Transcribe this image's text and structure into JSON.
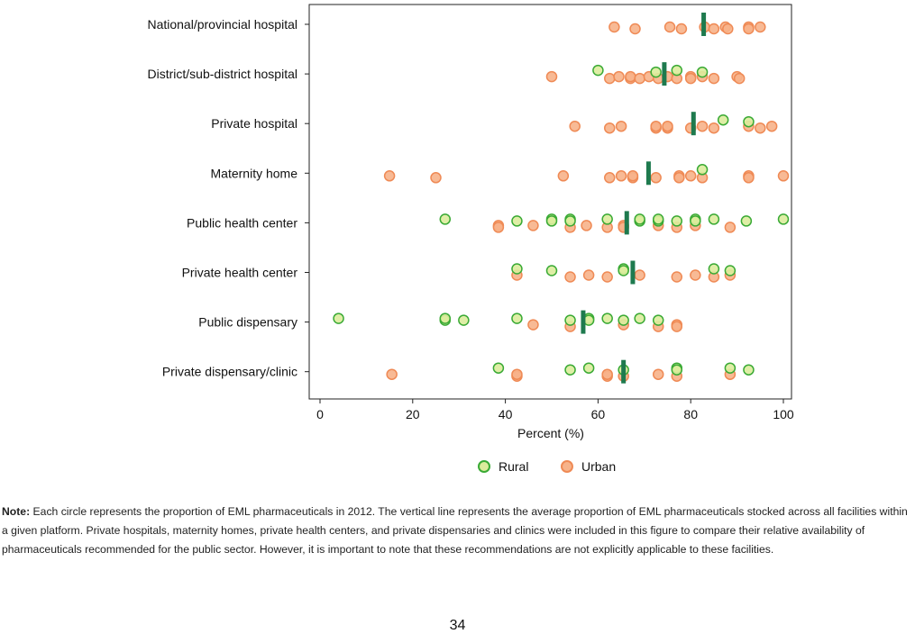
{
  "chart_data": {
    "type": "scatter",
    "xlabel": "Percent (%)",
    "xlim": [
      0,
      100
    ],
    "xticks": [
      0,
      20,
      40,
      60,
      80,
      100
    ],
    "categories": [
      "National/provincial hospital",
      "District/sub-district hospital",
      "Private hospital",
      "Maternity home",
      "Public health center",
      "Private health center",
      "Public dispensary",
      "Private dispensary/clinic"
    ],
    "grid": false,
    "legend_position": "bottom",
    "colors": {
      "rural_fill": "#dcec9c",
      "rural_edge": "#3aaa35",
      "urban_fill": "#f7b38a",
      "urban_edge": "#ef8a55",
      "mean_line": "#1e7a4e"
    },
    "series": [
      {
        "name": "Rural",
        "points": [
          [
            [],
            []
          ],
          [
            [
              60,
              72.5,
              77,
              82.5
            ],
            [
              73,
              72.5,
              73,
              72.5
            ]
          ],
          [
            [
              87,
              92.5
            ],
            [
              83,
              82.5
            ]
          ],
          [
            [
              82.5
            ],
            [
              77
            ]
          ],
          [
            [
              27,
              42.5,
              50,
              50,
              54,
              54,
              62,
              69,
              69,
              73,
              73,
              77,
              81,
              81,
              85,
              92,
              100
            ],
            [
              27,
              42.5,
              50,
              50,
              54,
              54,
              62,
              69,
              69,
              73,
              73,
              77,
              81,
              81,
              85,
              92,
              100
            ]
          ],
          [
            [
              42.5,
              50,
              65.5,
              65.5,
              85,
              88.5
            ],
            [
              42.5,
              50,
              65.5,
              65.5,
              85,
              88.5
            ]
          ],
          [
            [
              4,
              27,
              27,
              31,
              42.5,
              54,
              58,
              58,
              62,
              65.5,
              69,
              73
            ],
            [
              4,
              27,
              27,
              31,
              42.5,
              54,
              58,
              58,
              62,
              65.5,
              69,
              73
            ]
          ],
          [
            [
              38.5,
              54,
              58,
              65.5,
              77,
              77,
              88.5,
              92.5
            ],
            [
              38.5,
              54,
              58,
              65.5,
              77,
              77,
              88.5,
              92.5
            ]
          ]
        ]
      },
      {
        "name": "Urban",
        "points": []
      }
    ],
    "rural": [
      [],
      [
        60,
        72.5,
        77,
        82.5
      ],
      [
        87,
        92.5
      ],
      [
        82.5
      ],
      [
        27,
        42.5,
        50,
        50,
        54,
        54,
        62,
        69,
        69,
        73,
        73,
        77,
        81,
        81,
        85,
        92,
        100
      ],
      [
        42.5,
        50,
        65.5,
        65.5,
        85,
        88.5
      ],
      [
        4,
        27,
        27,
        31,
        42.5,
        54,
        58,
        58,
        62,
        65.5,
        69,
        73
      ],
      [
        38.5,
        54,
        58,
        65.5,
        77,
        77,
        88.5,
        92.5
      ]
    ],
    "urban": [
      [
        63.5,
        68,
        75.5,
        78,
        83,
        85,
        87.5,
        88,
        92.5,
        92.5,
        95
      ],
      [
        50,
        62.5,
        64.5,
        67,
        67,
        69,
        71,
        73,
        75,
        77,
        80,
        80,
        82.5,
        85,
        90,
        90.5
      ],
      [
        55,
        62.5,
        65,
        72.5,
        72.5,
        75,
        75,
        80,
        82.5,
        85,
        92.5,
        95,
        97.5
      ],
      [
        15,
        25,
        52.5,
        62.5,
        65,
        67.5,
        67.5,
        72.5,
        77.5,
        77.5,
        80,
        82.5,
        92.5,
        92.5,
        100
      ],
      [
        38.5,
        38.5,
        46,
        54,
        57.5,
        62,
        65.5,
        65.5,
        73,
        77,
        81,
        88.5
      ],
      [
        42.5,
        54,
        58,
        62,
        69,
        77,
        81,
        85,
        88.5
      ],
      [
        46,
        54,
        65.5,
        73,
        77,
        77
      ],
      [
        15.5,
        42.5,
        42.5,
        62,
        62,
        65.5,
        73,
        77,
        88.5
      ]
    ],
    "means": [
      82.8,
      74.3,
      80.6,
      70.9,
      66.2,
      67.5,
      56.8,
      65.5
    ]
  },
  "legend": {
    "rural_label": "Rural",
    "urban_label": "Urban"
  },
  "note": {
    "label": "Note:",
    "text": "Each circle represents the proportion of EML pharmaceuticals in 2012. The vertical line represents the average proportion of EML pharmaceuticals stocked across all facilities within a given platform. Private hospitals, maternity homes, private health centers, and private dispensaries and clinics were included in this figure to compare their relative availability of pharmaceuticals recommended for the public sector. However, it is important to note that these recommendations are not explicitly applicable to these facilities."
  },
  "page_number": "34"
}
